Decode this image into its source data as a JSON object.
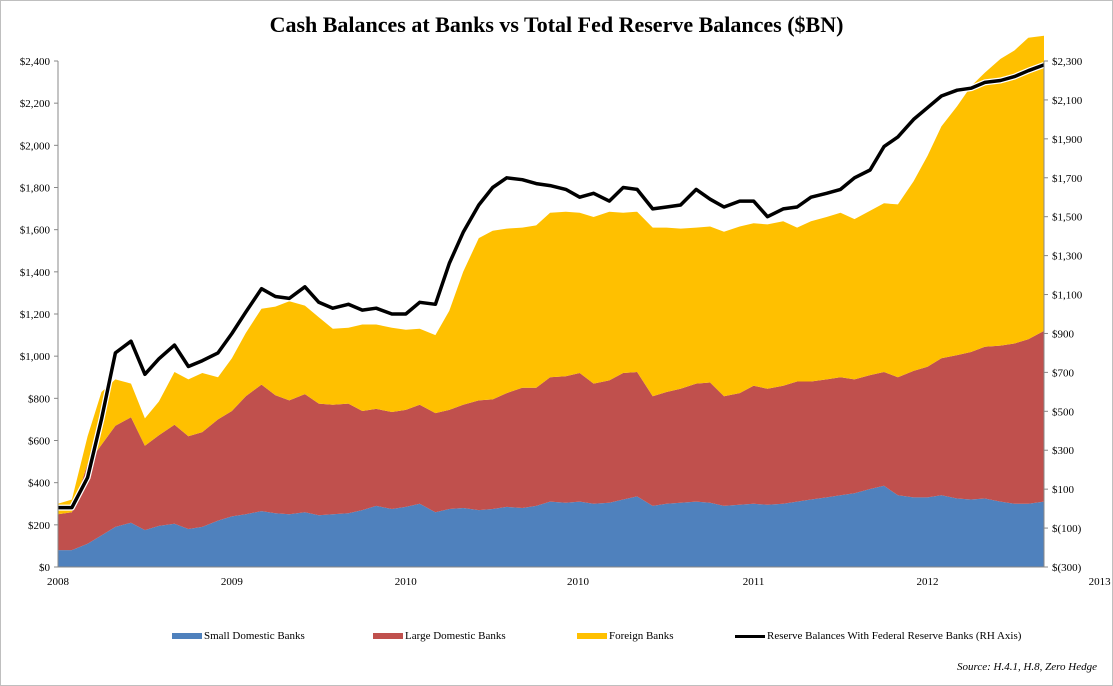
{
  "chart_data": {
    "type": "area",
    "title": "Cash Balances at Banks vs Total Fed Reserve Balances ($BN)",
    "left_axis": {
      "ylim": [
        0,
        2400
      ],
      "ticks": [
        0,
        200,
        400,
        600,
        800,
        1000,
        1200,
        1400,
        1600,
        1800,
        2000,
        2200,
        2400
      ],
      "tick_labels": [
        "$0",
        "$200",
        "$400",
        "$600",
        "$800",
        "$1,000",
        "$1,200",
        "$1,400",
        "$1,600",
        "$1,800",
        "$2,000",
        "$2,200",
        "$2,400"
      ]
    },
    "right_axis": {
      "ylim": [
        -300,
        2300
      ],
      "ticks": [
        -300,
        -100,
        100,
        300,
        500,
        700,
        900,
        1100,
        1300,
        1500,
        1700,
        1900,
        2100,
        2300
      ],
      "tick_labels": [
        "$(300)",
        "$(100)",
        "$100",
        "$300",
        "$500",
        "$700",
        "$900",
        "$1,100",
        "$1,300",
        "$1,500",
        "$1,700",
        "$1,900",
        "$2,100",
        "$2,300"
      ]
    },
    "x_range": [
      2008.0,
      2013.67
    ],
    "x_tick_positions": [
      2008.0,
      2009.0,
      2010.0,
      2010.99,
      2012.0,
      2013.0,
      2013.99
    ],
    "x_tick_labels": [
      "2008",
      "2009",
      "2010",
      "2010",
      "2011",
      "2012",
      "2013"
    ],
    "x": [
      2008.0,
      2008.08,
      2008.17,
      2008.25,
      2008.33,
      2008.42,
      2008.5,
      2008.58,
      2008.67,
      2008.75,
      2008.83,
      2008.92,
      2009.0,
      2009.08,
      2009.17,
      2009.25,
      2009.33,
      2009.42,
      2009.5,
      2009.58,
      2009.67,
      2009.75,
      2009.83,
      2009.92,
      2010.0,
      2010.08,
      2010.17,
      2010.25,
      2010.33,
      2010.42,
      2010.5,
      2010.58,
      2010.67,
      2010.75,
      2010.83,
      2010.92,
      2011.0,
      2011.08,
      2011.17,
      2011.25,
      2011.33,
      2011.42,
      2011.5,
      2011.58,
      2011.67,
      2011.75,
      2011.83,
      2011.92,
      2012.0,
      2012.08,
      2012.17,
      2012.25,
      2012.33,
      2012.42,
      2012.5,
      2012.58,
      2012.67,
      2012.75,
      2012.83,
      2012.92,
      2013.0,
      2013.08,
      2013.17,
      2013.25,
      2013.33,
      2013.42,
      2013.5,
      2013.58,
      2013.67
    ],
    "series": [
      {
        "name": "Small Domestic Banks",
        "color": "#4f81bd",
        "values": [
          80,
          80,
          110,
          150,
          190,
          210,
          175,
          195,
          205,
          180,
          190,
          220,
          240,
          250,
          265,
          255,
          250,
          260,
          245,
          250,
          255,
          270,
          290,
          275,
          285,
          300,
          260,
          275,
          280,
          270,
          275,
          285,
          280,
          290,
          310,
          305,
          310,
          300,
          305,
          320,
          335,
          290,
          300,
          305,
          310,
          305,
          290,
          295,
          300,
          295,
          300,
          310,
          320,
          330,
          340,
          350,
          370,
          385,
          340,
          330,
          330,
          340,
          325,
          320,
          325,
          310,
          300,
          300,
          310
        ]
      },
      {
        "name": "Large Domestic Banks",
        "color": "#c0504d",
        "values": [
          170,
          180,
          380,
          430,
          480,
          500,
          400,
          430,
          470,
          440,
          450,
          480,
          500,
          560,
          600,
          560,
          540,
          560,
          530,
          520,
          520,
          470,
          460,
          460,
          460,
          470,
          470,
          470,
          490,
          520,
          520,
          540,
          570,
          560,
          590,
          600,
          610,
          570,
          580,
          600,
          590,
          520,
          530,
          540,
          560,
          570,
          520,
          530,
          560,
          550,
          560,
          570,
          560,
          560,
          560,
          540,
          540,
          540,
          560,
          600,
          620,
          650,
          680,
          700,
          720,
          740,
          760,
          780,
          810
        ]
      },
      {
        "name": "Foreign Banks",
        "color": "#ffc000",
        "values": [
          50,
          60,
          130,
          250,
          220,
          160,
          130,
          160,
          250,
          270,
          280,
          200,
          250,
          300,
          360,
          420,
          470,
          420,
          410,
          360,
          360,
          410,
          400,
          400,
          380,
          360,
          370,
          470,
          630,
          770,
          800,
          780,
          760,
          770,
          780,
          780,
          760,
          790,
          800,
          760,
          760,
          800,
          780,
          760,
          740,
          740,
          780,
          790,
          770,
          780,
          780,
          730,
          760,
          770,
          780,
          760,
          780,
          800,
          820,
          900,
          1000,
          1100,
          1180,
          1260,
          1300,
          1360,
          1390,
          1430,
          1400
        ]
      },
      {
        "name": "Reserve Balances With Federal Reserve Banks (RH Axis)",
        "color": "#000000",
        "axis": "right",
        "values": [
          5,
          5,
          160,
          460,
          800,
          860,
          690,
          770,
          840,
          730,
          760,
          800,
          900,
          1010,
          1130,
          1090,
          1080,
          1140,
          1060,
          1030,
          1050,
          1020,
          1030,
          1000,
          1000,
          1060,
          1050,
          1260,
          1420,
          1560,
          1650,
          1700,
          1690,
          1670,
          1660,
          1640,
          1600,
          1620,
          1580,
          1650,
          1640,
          1540,
          1550,
          1560,
          1640,
          1590,
          1550,
          1580,
          1580,
          1500,
          1540,
          1550,
          1600,
          1620,
          1640,
          1700,
          1740,
          1860,
          1910,
          2000,
          2060,
          2120,
          2150,
          2160,
          2190,
          2200,
          2220,
          2250,
          2280
        ]
      }
    ],
    "legend": [
      "Small Domestic Banks",
      "Large Domestic Banks",
      "Foreign Banks",
      "Reserve Balances With Federal Reserve Banks (RH Axis)"
    ],
    "legend_position": "bottom",
    "source": "Source: H.4.1, H.8, Zero Hedge"
  }
}
